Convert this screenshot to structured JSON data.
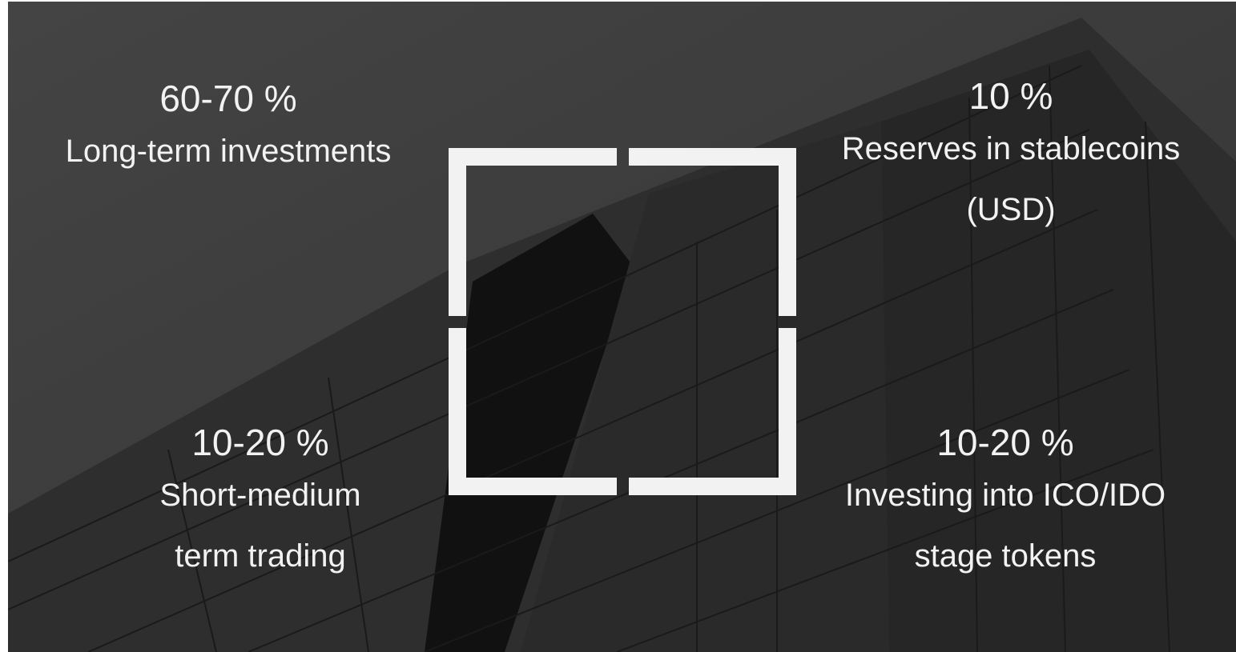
{
  "allocations": [
    {
      "percent": "60-70 %",
      "description_lines": [
        "Long-term investments"
      ]
    },
    {
      "percent": "10 %",
      "description_lines": [
        "Reserves in stablecoins",
        "(USD)"
      ]
    },
    {
      "percent": "10-20 %",
      "description_lines": [
        "Short-medium",
        "term trading"
      ]
    },
    {
      "percent": "10-20 %",
      "description_lines": [
        "Investing into ICO/IDO",
        "stage tokens"
      ]
    }
  ]
}
